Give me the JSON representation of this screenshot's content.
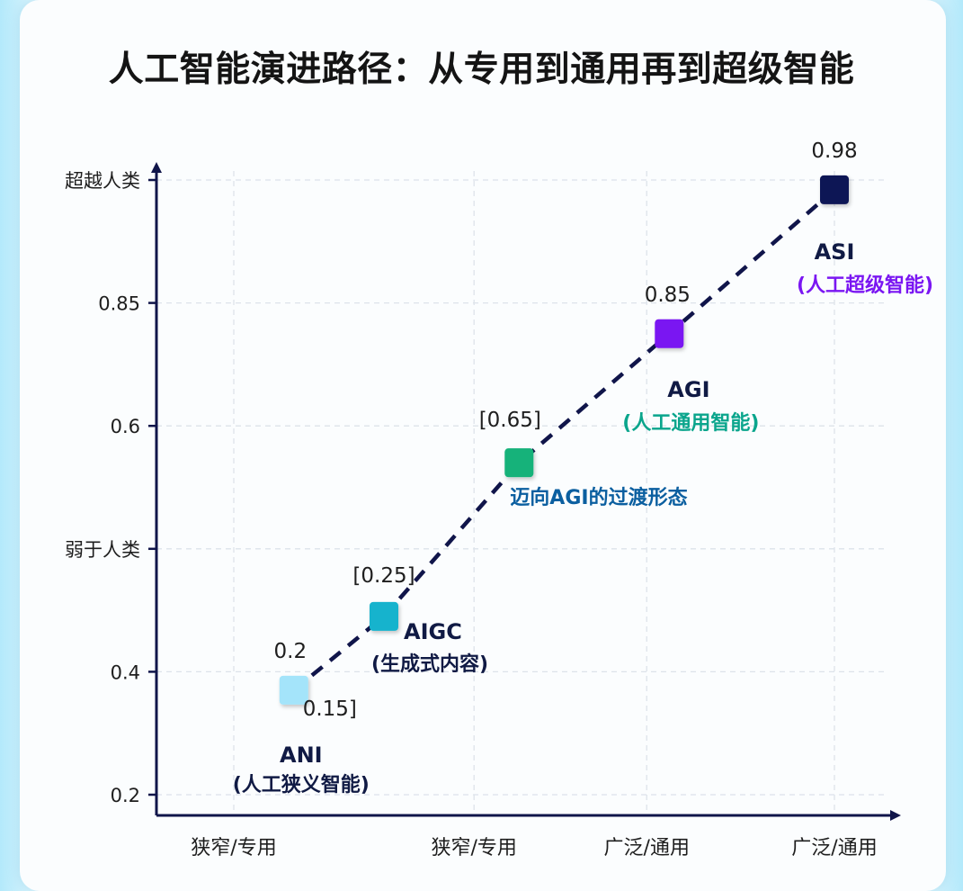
{
  "colors": {
    "axis": "#10154a",
    "trend_line": "#10154a",
    "grid": "#dde3ea"
  },
  "chart_data": {
    "type": "scatter",
    "title": "人工智能演进路径：从专用到通用再到超级智能",
    "x_ticks": [
      "狭窄/专用",
      "狭窄/专用",
      "广泛/通用",
      "广泛/通用"
    ],
    "y_ticks": [
      "0.2",
      "0.4",
      "弱于人类",
      "0.6",
      "0.85",
      "超越人类"
    ],
    "grid": true,
    "connector": "dashed",
    "points": [
      {
        "name": "ANI",
        "desc": "(人工狭义智能)",
        "label_top": "0.2",
        "label_side": "0.15]",
        "x": 0.4,
        "y": 0.85,
        "color": "#a4e4fa",
        "name_color": "#101a44",
        "desc_color": "#101a44"
      },
      {
        "name": "AIGC",
        "desc": "(生成式内容)",
        "label_top": "[0.25]",
        "label_side": "",
        "x": 1.0,
        "y": 1.45,
        "color": "#15b3cd",
        "name_color": "#101a44",
        "desc_color": "#101a44"
      },
      {
        "name": "",
        "desc": "迈向AGI的过渡形态",
        "label_top": "[0.65]",
        "label_side": "",
        "x": 1.9,
        "y": 2.7,
        "color": "#12b27a",
        "name_color": "#0b5fa0",
        "desc_color": "#0b5fa0"
      },
      {
        "name": "AGI",
        "desc": "(人工通用智能)",
        "label_top": "0.85",
        "label_side": "",
        "x": 2.9,
        "y": 3.75,
        "color": "#7a16f2",
        "name_color": "#101a44",
        "desc_color": "#0aa58c"
      },
      {
        "name": "ASI",
        "desc": "(人工超级智能)",
        "label_top": "0.98",
        "label_side": "",
        "x": 4.0,
        "y": 4.92,
        "color": "#0d1554",
        "name_color": "#101a44",
        "desc_color": "#7a16f2"
      }
    ]
  }
}
